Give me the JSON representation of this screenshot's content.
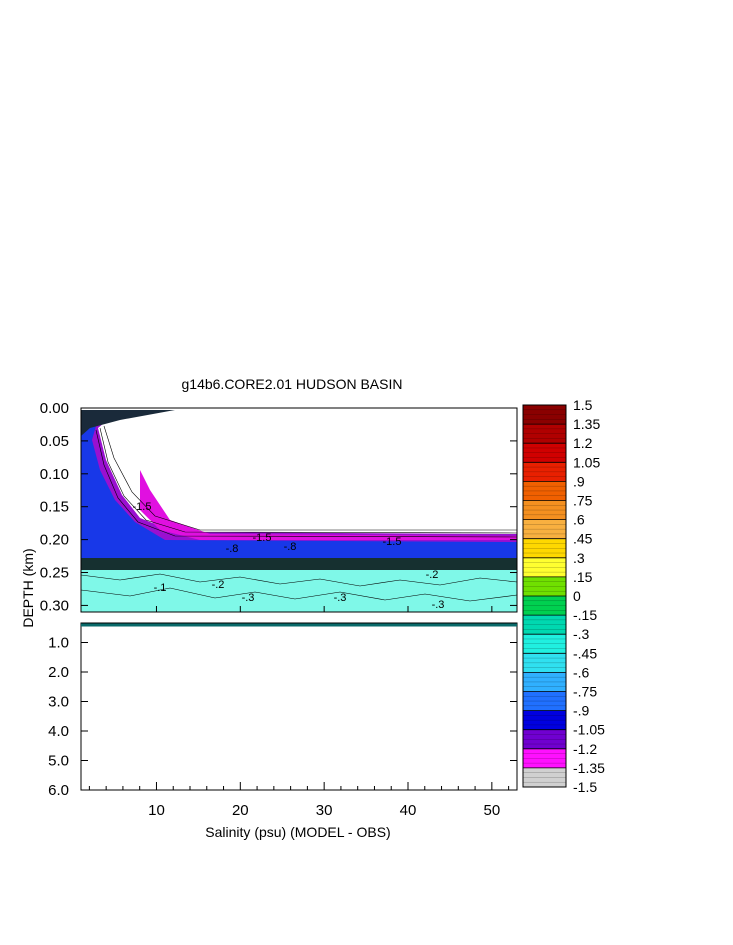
{
  "chart_data": {
    "type": "heatmap",
    "title": "g14b6.CORE2.01 HUDSON BASIN",
    "xlabel": "Salinity (psu) (MODEL - OBS)",
    "ylabel": "DEPTH (km)",
    "xlim": [
      1,
      53
    ],
    "x_ticks": [
      "10",
      "20",
      "30",
      "40",
      "50"
    ],
    "upper_panel": {
      "ylim": [
        0.0,
        0.31
      ],
      "y_ticks": [
        "0.00",
        "0.05",
        "0.10",
        "0.15",
        "0.20",
        "0.25",
        "0.30"
      ]
    },
    "lower_panel": {
      "ylim": [
        0.31,
        6.0
      ],
      "y_ticks": [
        "1.0",
        "2.0",
        "3.0",
        "4.0",
        "5.0",
        "6.0"
      ]
    },
    "colorbar": {
      "levels": [
        "1.5",
        "1.35",
        "1.2",
        "1.05",
        ".9",
        ".75",
        ".6",
        ".45",
        ".3",
        ".15",
        "0",
        "-.15",
        "-.3",
        "-.45",
        "-.6",
        "-.75",
        "-.9",
        "-1.05",
        "-1.2",
        "-1.35",
        "-1.5"
      ],
      "colors": [
        "#8a0000",
        "#b00000",
        "#d00000",
        "#e82000",
        "#f06000",
        "#f49020",
        "#f8b040",
        "#ffd800",
        "#ffff30",
        "#70e000",
        "#00d050",
        "#00d8b0",
        "#20f0e0",
        "#30e0f0",
        "#30b0ff",
        "#2070ff",
        "#0000e0",
        "#7000d0",
        "#ff10ff",
        "#d0d0d0",
        "#606060"
      ]
    },
    "contour_labels": [
      "-1.5",
      "-1.5",
      "-1.5",
      "-.8",
      "-.8",
      "-.2",
      "-.3",
      "-.3",
      "-.3",
      "-.1",
      "-.2"
    ]
  }
}
